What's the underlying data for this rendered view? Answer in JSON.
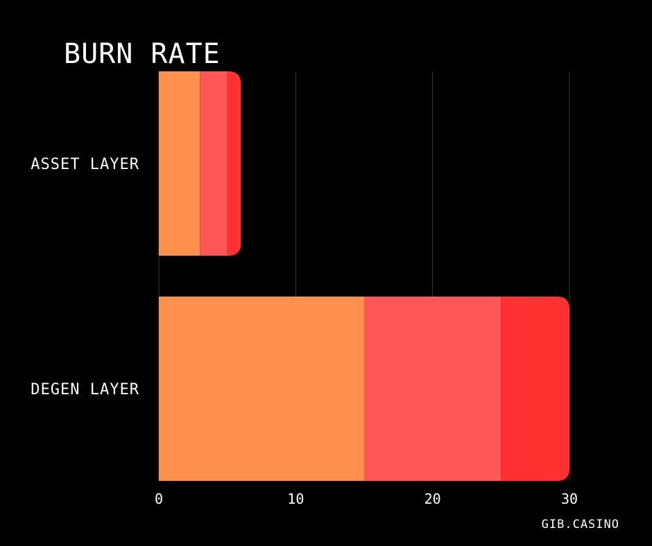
{
  "footer": {
    "text": "GIB.CASINO"
  },
  "colors": {
    "background": "#000000",
    "grid": "#3a3a3a",
    "text": "#ffffff"
  },
  "chart_data": {
    "type": "bar",
    "orientation": "horizontal",
    "stacked": true,
    "title": "BURN RATE",
    "xlabel": "",
    "ylabel": "",
    "categories": [
      "ASSET LAYER",
      "DEGEN LAYER"
    ],
    "series": [
      {
        "values": [
          3,
          15
        ],
        "color": "#ff914d"
      },
      {
        "values": [
          2,
          10
        ],
        "color": "#ff5757"
      },
      {
        "values": [
          1,
          5
        ],
        "color": "#ff3131"
      }
    ],
    "xlim": [
      0,
      30
    ],
    "xticks": [
      "0",
      "10",
      "20",
      "30"
    ],
    "grid": true,
    "legend": "none"
  }
}
